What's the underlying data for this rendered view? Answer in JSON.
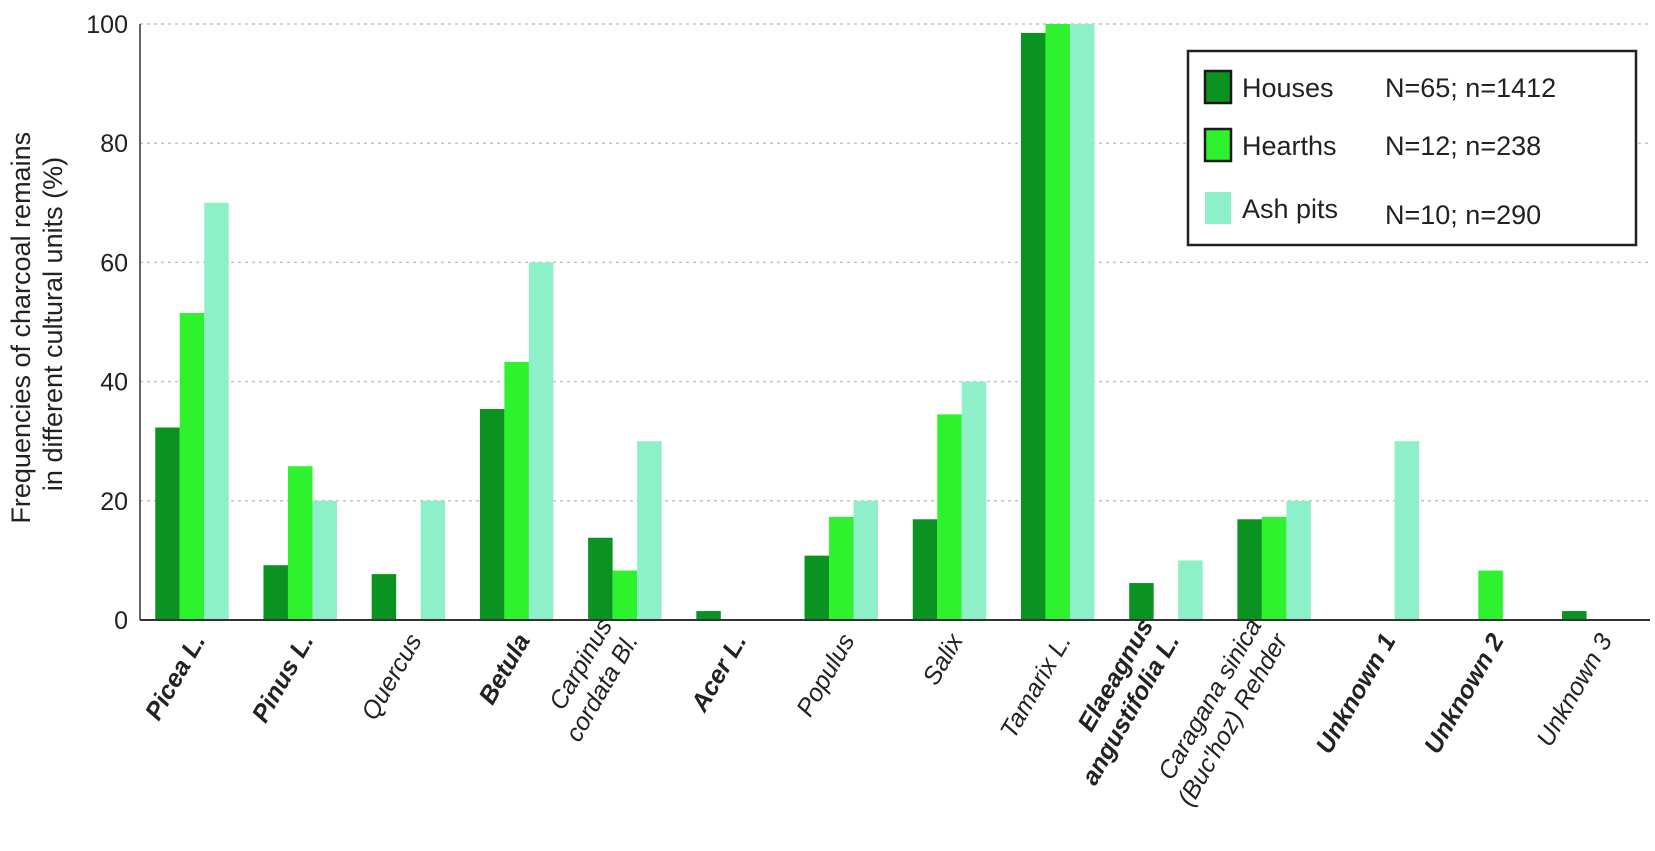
{
  "chart_data": {
    "type": "bar",
    "title": "",
    "ylabel_lines": [
      "Frequencies of charcoal remains",
      "in different cultural units (%)"
    ],
    "xlabel": "",
    "ylim": [
      0,
      100
    ],
    "yticks": [
      0,
      20,
      40,
      60,
      80,
      100
    ],
    "grid": "horizontal dotted",
    "legend_position": "top-right",
    "categories": [
      [
        "Picea L."
      ],
      [
        "Pinus L."
      ],
      [
        "Quercus"
      ],
      [
        "Betula"
      ],
      [
        "Carpinus",
        "cordata Bl."
      ],
      [
        "Acer L."
      ],
      [
        "Populus"
      ],
      [
        "Salix"
      ],
      [
        "Tamarix L."
      ],
      [
        "Elaeagnus",
        "angustifolia L."
      ],
      [
        "Caragana sinica",
        "(Buc'hoz) Rehder"
      ],
      [
        "Unknown 1"
      ],
      [
        "Unknown 2"
      ],
      [
        "Unknown 3"
      ]
    ],
    "category_bold": [
      true,
      true,
      false,
      true,
      false,
      true,
      false,
      false,
      false,
      true,
      false,
      true,
      true,
      false
    ],
    "series": [
      {
        "name": "Houses",
        "stats": "N=65; n=1412",
        "color": "#0a9321",
        "values": [
          32.3,
          9.2,
          7.7,
          35.4,
          13.8,
          1.5,
          10.8,
          16.9,
          98.5,
          6.2,
          16.9,
          0,
          0,
          1.5
        ]
      },
      {
        "name": "Hearths",
        "stats": "N=12; n=238",
        "color": "#2ef22e",
        "values": [
          51.5,
          25.8,
          0,
          43.3,
          8.3,
          0,
          17.3,
          34.5,
          100,
          0,
          17.3,
          0,
          8.3,
          0
        ]
      },
      {
        "name": "Ash pits",
        "stats": "N=10; n=290",
        "color": "#8ef0c8",
        "values": [
          70,
          20,
          20,
          60,
          30,
          0,
          20,
          40,
          100,
          10,
          20,
          30,
          0,
          0
        ]
      }
    ]
  }
}
